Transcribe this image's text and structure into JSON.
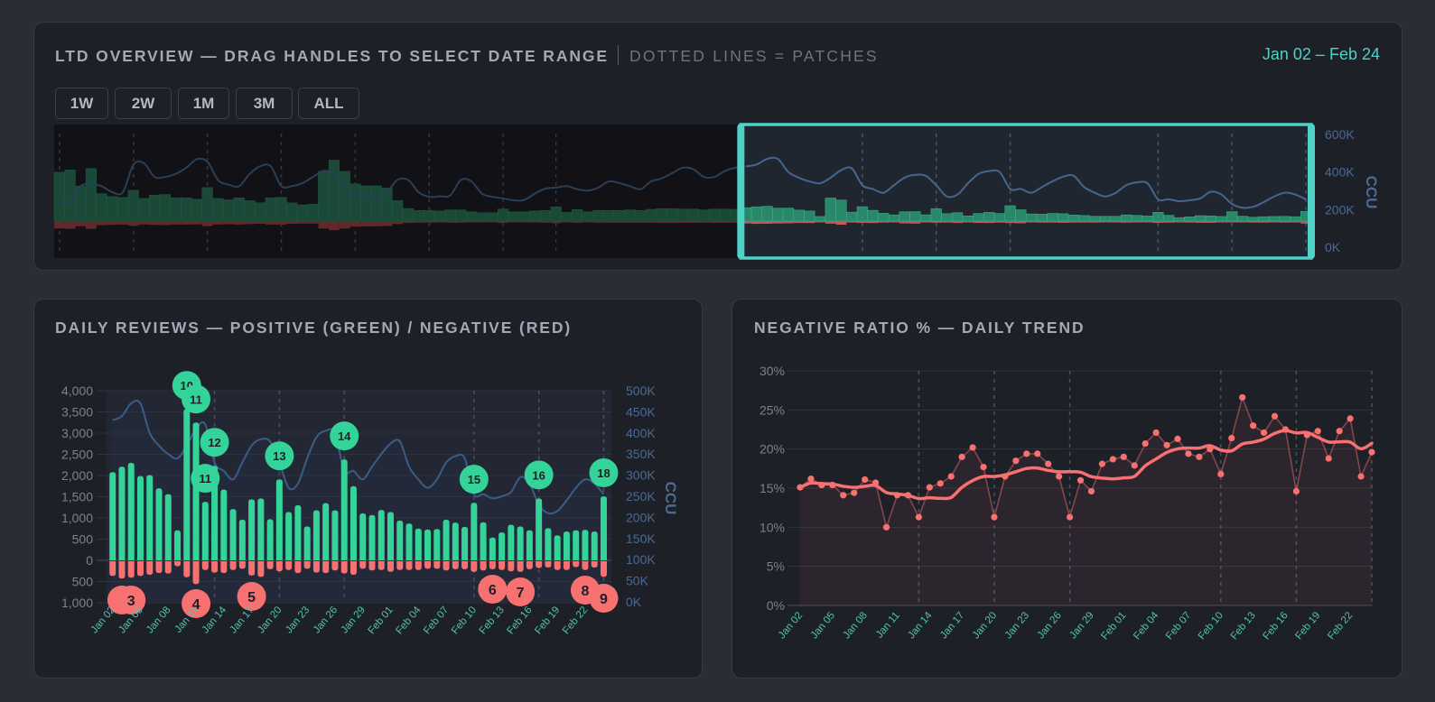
{
  "overview": {
    "title": "LTD OVERVIEW — DRAG HANDLES TO SELECT DATE RANGE",
    "subtitle": "DOTTED LINES = PATCHES",
    "range_label": "Jan 02 – Feb 24",
    "selection": {
      "start": "Jan 02",
      "end": "Feb 24"
    },
    "buttons": [
      "1W",
      "2W",
      "1M",
      "3M",
      "ALL"
    ],
    "ccu_axis_label": "CCU",
    "ccu_ticks": [
      "0K",
      "200K",
      "400K",
      "600K"
    ],
    "ccu_range_k": [
      0,
      600
    ],
    "patches": [
      "Oct 29",
      "Nov 05",
      "Nov 12",
      "Nov 19",
      "Nov 26",
      "Dec 03",
      "Dec 10",
      "Dec 15",
      "Jan 13",
      "Jan 20",
      "Jan 27",
      "Feb 10",
      "Feb 17",
      "Feb 24"
    ],
    "before_range": {
      "positive": [
        7580,
        7930,
        5420,
        8150,
        4250,
        3810,
        3680,
        4770,
        3510,
        4030,
        4120,
        3600,
        3600,
        3380,
        5200,
        3510,
        3290,
        3600,
        3160,
        2820,
        3600,
        3680,
        2820,
        2510,
        2600,
        7710,
        9450,
        7710,
        5760,
        5460,
        5460,
        5110,
        3160,
        1950,
        1650,
        1650,
        1560,
        1730,
        1730,
        1430,
        1300,
        1300,
        1860,
        1430,
        1430,
        1560,
        1650,
        2210,
        1340,
        1780,
        1430,
        1650,
        1650,
        1650,
        1730,
        1650,
        1820,
        1910,
        1910,
        1860,
        1860,
        1730,
        1860,
        1860,
        1820
      ],
      "negative": [
        1140,
        1190,
        810,
        1220,
        640,
        570,
        550,
        720,
        530,
        600,
        620,
        540,
        540,
        510,
        780,
        530,
        490,
        540,
        470,
        420,
        540,
        550,
        420,
        380,
        390,
        1160,
        1420,
        1160,
        860,
        820,
        820,
        770,
        470,
        290,
        250,
        250,
        230,
        260,
        260,
        210,
        200,
        200,
        280,
        210,
        210,
        230,
        250,
        330,
        200,
        270,
        210,
        250,
        250,
        250,
        260,
        250,
        270,
        290,
        290,
        280,
        280,
        260,
        280,
        280,
        270
      ],
      "ccu_k": [
        244,
        244,
        325,
        338,
        325,
        293,
        293,
        439,
        447,
        374,
        374,
        390,
        423,
        468,
        455,
        358,
        333,
        325,
        390,
        431,
        431,
        325,
        325,
        341,
        374,
        406,
        390,
        309,
        285,
        276,
        260,
        293,
        358,
        358,
        293,
        268,
        271,
        276,
        358,
        350,
        285,
        268,
        260,
        249,
        252,
        285,
        312,
        317,
        325,
        309,
        301,
        317,
        350,
        341,
        325,
        309,
        350,
        366,
        394,
        423,
        415,
        374,
        374,
        406,
        423
      ]
    },
    "colors": {
      "accent": "#4fd1c5",
      "positive": "#34d399",
      "negative": "#f87171",
      "ccu": "#4a6a94"
    }
  },
  "reviews": {
    "title": "DAILY REVIEWS — POSITIVE (GREEN) / NEGATIVE (RED)",
    "chart_data": {
      "type": "bar",
      "dates": [
        "Jan 02",
        "Jan 03",
        "Jan 04",
        "Jan 05",
        "Jan 06",
        "Jan 07",
        "Jan 08",
        "Jan 09",
        "Jan 10",
        "Jan 11",
        "Jan 12",
        "Jan 13",
        "Jan 14",
        "Jan 15",
        "Jan 16",
        "Jan 17",
        "Jan 18",
        "Jan 19",
        "Jan 20",
        "Jan 21",
        "Jan 22",
        "Jan 23",
        "Jan 24",
        "Jan 25",
        "Jan 26",
        "Jan 27",
        "Jan 28",
        "Jan 29",
        "Jan 30",
        "Jan 31",
        "Feb 01",
        "Feb 02",
        "Feb 03",
        "Feb 04",
        "Feb 05",
        "Feb 06",
        "Feb 07",
        "Feb 08",
        "Feb 09",
        "Feb 10",
        "Feb 11",
        "Feb 12",
        "Feb 13",
        "Feb 14",
        "Feb 15",
        "Feb 16",
        "Feb 17",
        "Feb 18",
        "Feb 19",
        "Feb 20",
        "Feb 21",
        "Feb 22",
        "Feb 23",
        "Feb 24"
      ],
      "series": [
        {
          "key": "positive",
          "values": [
            2080,
            2210,
            2300,
            1990,
            2010,
            1700,
            1560,
            710,
            3570,
            3250,
            1380,
            2230,
            1670,
            1210,
            960,
            1440,
            1460,
            970,
            1910,
            1140,
            1300,
            800,
            1180,
            1350,
            1180,
            2380,
            1750,
            1110,
            1070,
            1190,
            1140,
            940,
            870,
            750,
            730,
            740,
            960,
            890,
            790,
            1360,
            900,
            540,
            660,
            840,
            800,
            710,
            1460,
            760,
            590,
            680,
            710,
            720,
            680,
            1510
          ]
        },
        {
          "key": "negative",
          "values": [
            370,
            430,
            410,
            370,
            340,
            300,
            310,
            140,
            400,
            560,
            230,
            290,
            300,
            230,
            200,
            360,
            390,
            210,
            260,
            230,
            300,
            200,
            290,
            300,
            240,
            310,
            340,
            200,
            240,
            230,
            270,
            230,
            230,
            230,
            200,
            200,
            240,
            210,
            210,
            270,
            240,
            210,
            230,
            260,
            270,
            210,
            180,
            170,
            230,
            230,
            160,
            230,
            170,
            390
          ]
        },
        {
          "key": "ccu_k",
          "axis": "right",
          "values": [
            430,
            440,
            470,
            470,
            400,
            370,
            350,
            340,
            370,
            410,
            420,
            330,
            310,
            290,
            330,
            370,
            385,
            380,
            330,
            270,
            280,
            340,
            390,
            405,
            400,
            310,
            310,
            290,
            320,
            350,
            375,
            380,
            320,
            290,
            270,
            290,
            330,
            345,
            340,
            255,
            255,
            245,
            250,
            260,
            295,
            280,
            230,
            210,
            215,
            240,
            270,
            290,
            280,
            255
          ]
        }
      ],
      "left_ticks": [
        {
          "v": 4000,
          "t": "4,000"
        },
        {
          "v": 3500,
          "t": "3,500"
        },
        {
          "v": 3000,
          "t": "3,000"
        },
        {
          "v": 2500,
          "t": "2,500"
        },
        {
          "v": 2000,
          "t": "2,000"
        },
        {
          "v": 1500,
          "t": "1,500"
        },
        {
          "v": 1000,
          "t": "1,000"
        },
        {
          "v": 500,
          "t": "500"
        },
        {
          "v": 0,
          "t": "0"
        },
        {
          "v": -500,
          "t": "500"
        },
        {
          "v": -1000,
          "t": "1,000"
        }
      ],
      "right_ticks": [
        {
          "v": 500,
          "t": "500K"
        },
        {
          "v": 450,
          "t": "450K"
        },
        {
          "v": 400,
          "t": "400K"
        },
        {
          "v": 350,
          "t": "350K"
        },
        {
          "v": 300,
          "t": "300K"
        },
        {
          "v": 250,
          "t": "250K"
        },
        {
          "v": 200,
          "t": "200K"
        },
        {
          "v": 150,
          "t": "150K"
        },
        {
          "v": 100,
          "t": "100K"
        },
        {
          "v": 50,
          "t": "50K"
        },
        {
          "v": 0,
          "t": "0K"
        }
      ],
      "ylim": [
        -1000,
        4000
      ],
      "y2lim_k": [
        0,
        500
      ],
      "y2label": "CCU",
      "patches": [
        "Jan 13",
        "Jan 20",
        "Jan 27",
        "Feb 10",
        "Feb 17",
        "Feb 24"
      ],
      "green_markers": [
        {
          "date": "Jan 10",
          "label": "10"
        },
        {
          "date": "Jan 11",
          "label": "11"
        },
        {
          "date": "Jan 13",
          "label": "12"
        },
        {
          "date": "Jan 12",
          "label": "11"
        },
        {
          "date": "Jan 20",
          "label": "13"
        },
        {
          "date": "Jan 27",
          "label": "14"
        },
        {
          "date": "Feb 10",
          "label": "15"
        },
        {
          "date": "Feb 17",
          "label": "16"
        },
        {
          "date": "Feb 24",
          "label": "18"
        }
      ],
      "red_markers": [
        {
          "date": "Jan 03",
          "label": ""
        },
        {
          "date": "Jan 04",
          "label": "3"
        },
        {
          "date": "Jan 11",
          "label": "4"
        },
        {
          "date": "Jan 17",
          "label": "5"
        },
        {
          "date": "Feb 12",
          "label": "6"
        },
        {
          "date": "Feb 15",
          "label": "7"
        },
        {
          "date": "Feb 22",
          "label": "8"
        },
        {
          "date": "Feb 24",
          "label": "9"
        }
      ]
    }
  },
  "ratio": {
    "title": "NEGATIVE RATIO % — DAILY TREND",
    "chart_data": {
      "type": "line",
      "values_pct": [
        15.1,
        16.2,
        15.4,
        15.4,
        14.1,
        14.4,
        16.1,
        15.7,
        10.0,
        14.1,
        14.1,
        11.3,
        15.1,
        15.6,
        16.5,
        19.0,
        20.2,
        17.7,
        11.3,
        16.5,
        18.5,
        19.4,
        19.4,
        18.1,
        16.5,
        11.3,
        16.0,
        14.6,
        18.1,
        18.7,
        19.0,
        17.9,
        20.7,
        22.1,
        20.5,
        21.3,
        19.4,
        19.0,
        20.0,
        16.8,
        21.4,
        26.6,
        23.0,
        22.1,
        24.2,
        22.5,
        14.6,
        21.8,
        22.3,
        18.8,
        22.3,
        23.9,
        16.5,
        19.6
      ],
      "trend": "7-day rolling average",
      "yticks": [
        "0%",
        "5%",
        "10%",
        "15%",
        "20%",
        "25%",
        "30%"
      ],
      "ylim": [
        0,
        30
      ],
      "patches": [
        "Jan 13",
        "Jan 20",
        "Jan 27",
        "Feb 10",
        "Feb 17",
        "Feb 24"
      ]
    }
  }
}
